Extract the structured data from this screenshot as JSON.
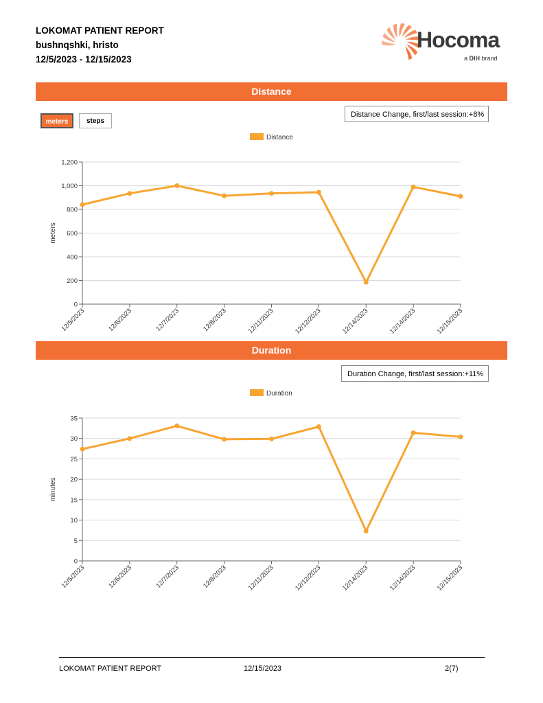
{
  "header": {
    "report_title": "LOKOMAT PATIENT REPORT",
    "patient_name": "bushnqshki, hristo",
    "date_range": "12/5/2023 - 12/15/2023"
  },
  "logo": {
    "brand": "Hocoma",
    "tagline_prefix": "a ",
    "tagline_brand": "DIH",
    "tagline_suffix": " brand",
    "colors": {
      "orange": "#f26f34",
      "text": "#3a3a3a"
    }
  },
  "distance_section": {
    "title": "Distance",
    "unit_buttons": {
      "meters": "meters",
      "steps": "steps"
    },
    "change_label": "Distance Change, first/last session:+8%"
  },
  "duration_section": {
    "title": "Duration",
    "change_label": "Duration Change, first/last session:+11%"
  },
  "chart_data": [
    {
      "type": "line",
      "categories": [
        "12/5/2023",
        "12/6/2023",
        "12/7/2023",
        "12/8/2023",
        "12/11/2023",
        "12/12/2023",
        "12/14/2023",
        "12/14/2023",
        "12/15/2023"
      ],
      "series": [
        {
          "name": "Distance",
          "values": [
            840,
            935,
            1000,
            915,
            935,
            945,
            185,
            990,
            910
          ]
        }
      ],
      "ylabel": "meters",
      "ylim": [
        0,
        1200
      ],
      "yticks": [
        0,
        200,
        400,
        600,
        800,
        1000,
        1200
      ],
      "ytick_labels": [
        "0",
        "200",
        "400",
        "600",
        "800",
        "1,000",
        "1,200"
      ],
      "legend": "top-center",
      "grid": true,
      "color": "#f7a531"
    },
    {
      "type": "line",
      "categories": [
        "12/5/2023",
        "12/6/2023",
        "12/7/2023",
        "12/8/2023",
        "12/11/2023",
        "12/12/2023",
        "12/14/2023",
        "12/14/2023",
        "12/15/2023"
      ],
      "series": [
        {
          "name": "Duration",
          "values": [
            27.4,
            30.0,
            33.1,
            29.8,
            29.9,
            32.9,
            7.3,
            31.4,
            30.4
          ]
        }
      ],
      "ylabel": "minutes",
      "ylim": [
        0,
        35
      ],
      "yticks": [
        0,
        5,
        10,
        15,
        20,
        25,
        30,
        35
      ],
      "ytick_labels": [
        "0",
        "5",
        "10",
        "15",
        "20",
        "25",
        "30",
        "35"
      ],
      "legend": "top-center",
      "grid": true,
      "color": "#f7a531"
    }
  ],
  "footer": {
    "title": "LOKOMAT PATIENT REPORT",
    "date": "12/15/2023",
    "page": "2(7)"
  }
}
